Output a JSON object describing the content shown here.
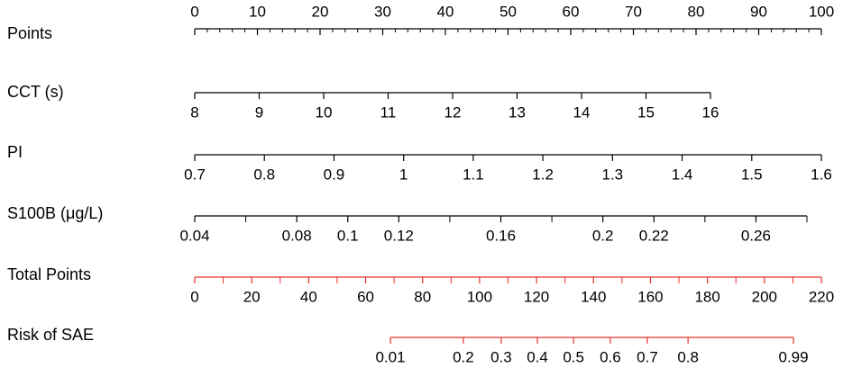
{
  "chart_data": {
    "type": "nomogram",
    "rows": [
      {
        "label": "Points",
        "lim": [
          0,
          100
        ],
        "points_lim": [
          0,
          100
        ],
        "tick_labels": "above",
        "color": "#000000",
        "ticks": [
          0,
          10,
          20,
          30,
          40,
          50,
          60,
          70,
          80,
          90,
          100
        ],
        "minor_ticks": [
          2,
          4,
          6,
          8,
          12,
          14,
          16,
          18,
          22,
          24,
          26,
          28,
          32,
          34,
          36,
          38,
          42,
          44,
          46,
          48,
          52,
          54,
          56,
          58,
          62,
          64,
          66,
          68,
          72,
          74,
          76,
          78,
          82,
          84,
          86,
          88,
          92,
          94,
          96,
          98
        ]
      },
      {
        "label": "CCT (s)",
        "lim": [
          8,
          16
        ],
        "points_lim": [
          0,
          82.3
        ],
        "tick_labels": "below",
        "color": "#000000",
        "ticks": [
          8,
          9,
          10,
          11,
          12,
          13,
          14,
          15,
          16
        ]
      },
      {
        "label": "PI",
        "lim": [
          0.7,
          1.6
        ],
        "points_lim": [
          0,
          100
        ],
        "tick_labels": "below",
        "color": "#000000",
        "ticks": [
          0.7,
          0.8,
          0.9,
          1,
          1.1,
          1.2,
          1.3,
          1.4,
          1.5,
          1.6
        ]
      },
      {
        "label": "S100B (μg/L)",
        "lim": [
          0.04,
          0.28
        ],
        "points_lim": [
          0,
          97.7
        ],
        "tick_labels": "below",
        "color": "#000000",
        "ticks": [
          0.04,
          0.08,
          0.1,
          0.12,
          0.16,
          0.2,
          0.22,
          0.26
        ],
        "minor_ticks": [
          0.06,
          0.14,
          0.18,
          0.24,
          0.28
        ]
      },
      {
        "label": "Total Points",
        "lim": [
          0,
          220
        ],
        "points_lim": [
          0,
          100
        ],
        "tick_labels": "below",
        "color": "#e8302a",
        "ticks": [
          0,
          20,
          40,
          60,
          80,
          100,
          120,
          140,
          160,
          180,
          200,
          220
        ],
        "minor_ticks": [
          10,
          30,
          50,
          70,
          90,
          110,
          130,
          150,
          170,
          190,
          210
        ]
      },
      {
        "label": "Risk of SAE",
        "tick_labels": "below",
        "color": "#e8302a",
        "ticks": [
          0.01,
          0.2,
          0.3,
          0.4,
          0.5,
          0.6,
          0.7,
          0.8,
          0.99
        ],
        "total_points": [
          68.7,
          94.3,
          107.6,
          120.3,
          133.0,
          145.9,
          158.9,
          173.2,
          210.2
        ]
      }
    ]
  }
}
